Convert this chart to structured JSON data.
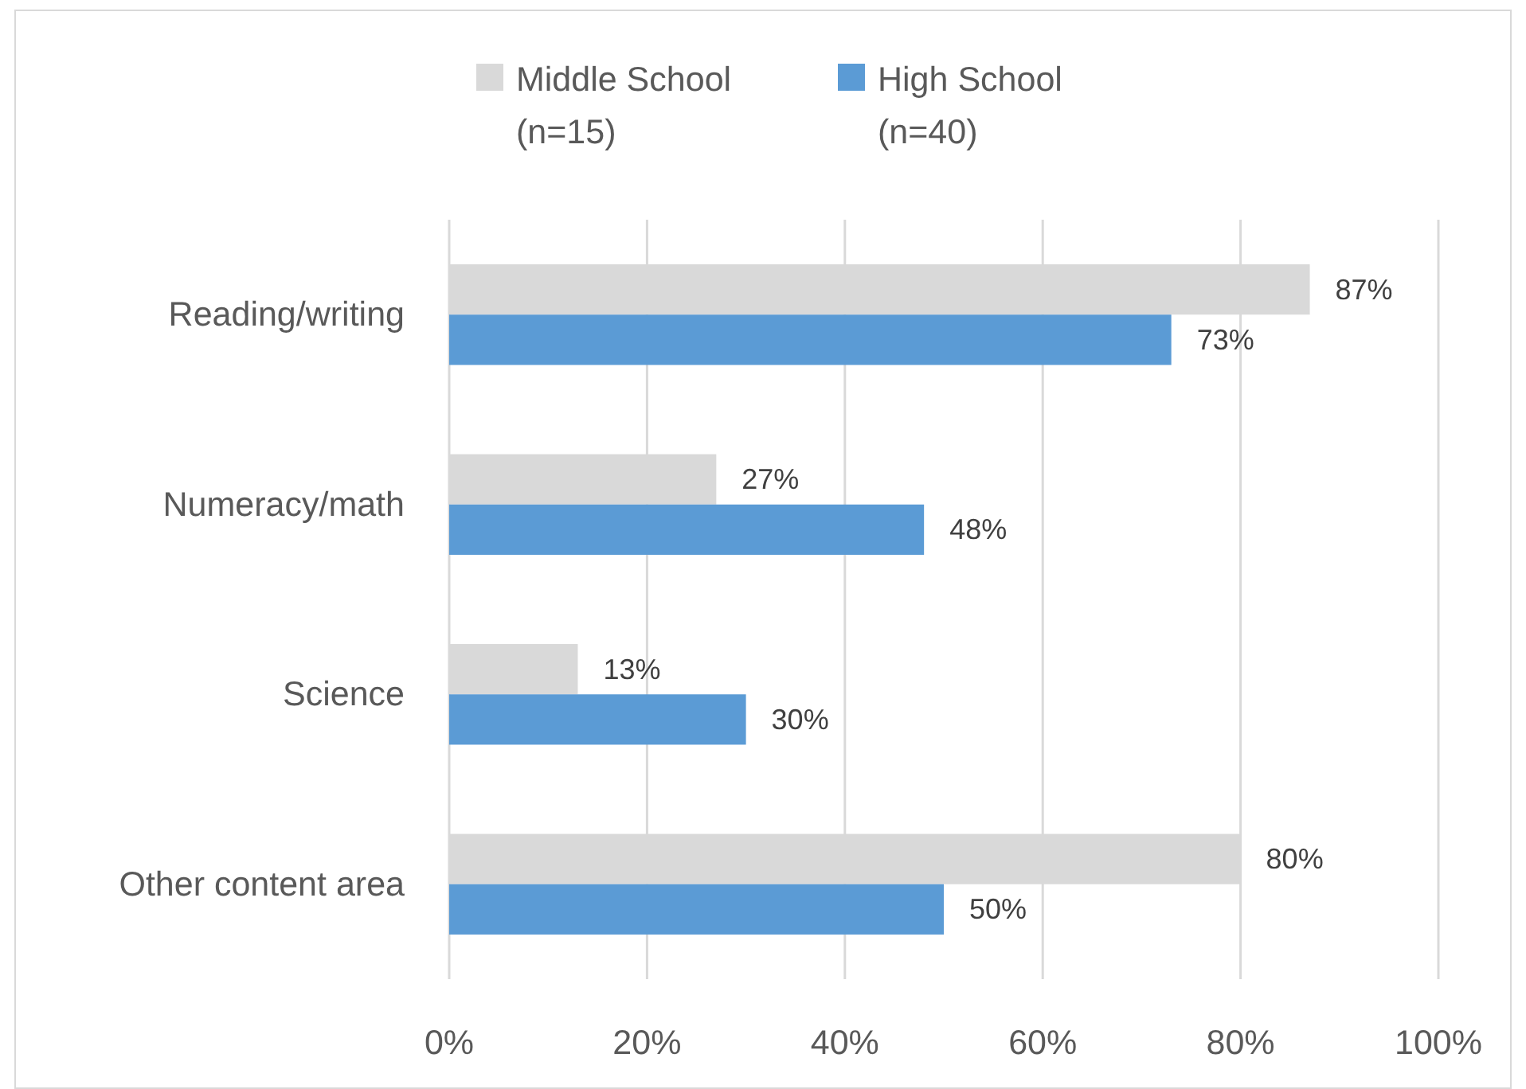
{
  "chart_data": {
    "type": "bar",
    "orientation": "horizontal",
    "categories": [
      "Reading/writing",
      "Numeracy/math",
      "Science",
      "Other content area"
    ],
    "series": [
      {
        "name": "Middle School (n=15)",
        "color": "#d9d9d9",
        "values": [
          87,
          27,
          13,
          80
        ],
        "value_labels": [
          "87%",
          "27%",
          "13%",
          "80%"
        ]
      },
      {
        "name": "High School (n=40)",
        "color": "#5b9bd5",
        "values": [
          73,
          48,
          30,
          50
        ],
        "value_labels": [
          "73%",
          "48%",
          "30%",
          "50%"
        ]
      }
    ],
    "xlim": [
      0,
      100
    ],
    "xticks": [
      {
        "value": 0,
        "label": "0%"
      },
      {
        "value": 20,
        "label": "20%"
      },
      {
        "value": 40,
        "label": "40%"
      },
      {
        "value": 60,
        "label": "60%"
      },
      {
        "value": 80,
        "label": "80%"
      },
      {
        "value": 100,
        "label": "100%"
      }
    ],
    "grid": "x",
    "legend": "top"
  }
}
